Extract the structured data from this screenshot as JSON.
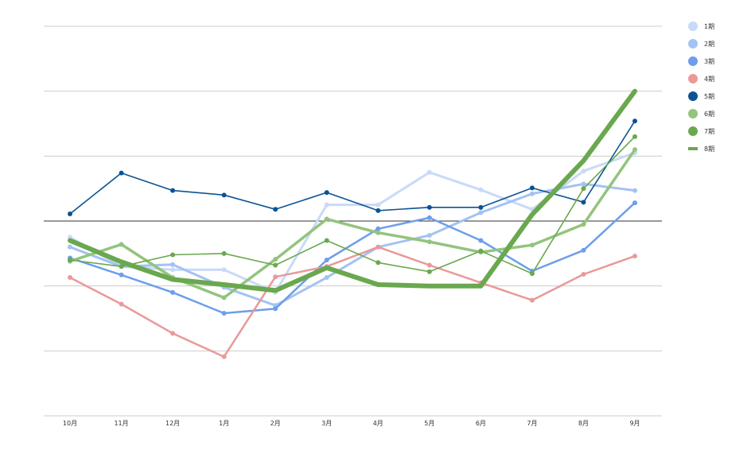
{
  "chart_data": {
    "type": "line",
    "categories": [
      "10月",
      "11月",
      "12月",
      "1月",
      "2月",
      "3月",
      "4月",
      "5月",
      "6月",
      "7月",
      "8月",
      "9月"
    ],
    "ylim": [
      -3,
      3
    ],
    "baseline": 0,
    "grid": true,
    "legend_position": "right",
    "series": [
      {
        "name": "1期",
        "color": "#c9daf8",
        "values": [
          -0.25,
          -0.7,
          -0.75,
          -0.75,
          -1.1,
          0.25,
          0.25,
          0.75,
          0.48,
          0.18,
          0.77,
          1.05
        ]
      },
      {
        "name": "2期",
        "color": "#a4c2f4",
        "values": [
          -0.4,
          -0.7,
          -0.67,
          -1.02,
          -1.3,
          -0.87,
          -0.4,
          -0.22,
          0.13,
          0.42,
          0.57,
          0.47
        ]
      },
      {
        "name": "3期",
        "color": "#6d9eeb",
        "values": [
          -0.57,
          -0.83,
          -1.1,
          -1.42,
          -1.35,
          -0.6,
          -0.12,
          0.05,
          -0.3,
          -0.77,
          -0.45,
          0.28
        ]
      },
      {
        "name": "4期",
        "color": "#ea9999",
        "values": [
          -0.87,
          -1.28,
          -1.73,
          -2.09,
          -0.86,
          -0.7,
          -0.4,
          -0.68,
          -0.95,
          -1.22,
          -0.82,
          -0.54
        ]
      },
      {
        "name": "5期",
        "color": "#0b5394",
        "values": [
          0.11,
          0.74,
          0.47,
          0.4,
          0.18,
          0.44,
          0.16,
          0.21,
          0.21,
          0.51,
          0.29,
          1.54
        ]
      },
      {
        "name": "6期",
        "color": "#93c47d",
        "values": [
          -0.62,
          -0.36,
          -0.87,
          -1.18,
          -0.59,
          0.03,
          -0.18,
          -0.32,
          -0.48,
          -0.37,
          -0.05,
          1.1
        ]
      },
      {
        "name": "7期",
        "color": "#6aa84f",
        "values": [
          -0.6,
          -0.7,
          -0.52,
          -0.5,
          -0.68,
          -0.3,
          -0.64,
          -0.78,
          -0.46,
          -0.81,
          0.5,
          1.3
        ]
      },
      {
        "name": "8期",
        "color": "#6aa84f",
        "values": [
          -0.3,
          -0.63,
          -0.9,
          -0.98,
          -1.07,
          -0.72,
          -0.98,
          -1.0,
          -1.0,
          0.1,
          0.93,
          2.0
        ]
      }
    ]
  }
}
